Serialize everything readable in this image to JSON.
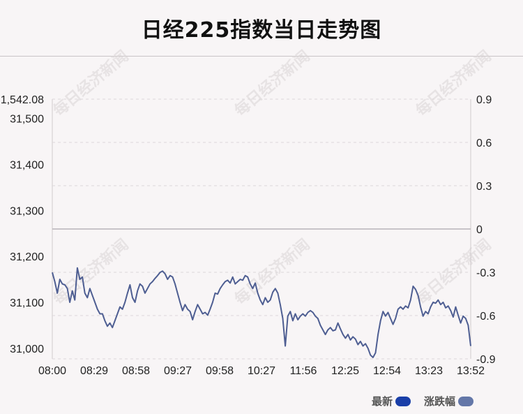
{
  "title": "日经225指数当日走势图",
  "watermark": "每日经济新闻",
  "legend": [
    {
      "label": "最新",
      "color": "#1a3fa8"
    },
    {
      "label": "涨跌幅",
      "color": "#6477a8"
    }
  ],
  "colors": {
    "line": "#4e5e92",
    "zero_line": "#b8b4b8",
    "grid": "#dcd8da"
  },
  "chart_data": {
    "type": "line",
    "title": "日经225指数当日走势图",
    "x_ticks": [
      "08:00",
      "08:29",
      "08:58",
      "09:27",
      "09:58",
      "10:27",
      "11:56",
      "12:25",
      "12:54",
      "13:23",
      "13:52"
    ],
    "y_left_ticks": [
      "31,542.08",
      "31,500",
      "31,400",
      "31,300",
      "31,200",
      "31,100",
      "31,000"
    ],
    "y_right_ticks": [
      "0.9",
      "0.6",
      "0.3",
      "0",
      "-0.3",
      "-0.6",
      "-0.9"
    ],
    "ylim_left": [
      30977,
      31542.08
    ],
    "ylim_right": [
      -0.9,
      0.9
    ],
    "series": [
      {
        "name": "最新",
        "points": [
          [
            0,
            31165
          ],
          [
            1,
            31145
          ],
          [
            2,
            31120
          ],
          [
            3,
            31150
          ],
          [
            4,
            31140
          ],
          [
            5,
            31138
          ],
          [
            6,
            31130
          ],
          [
            7,
            31100
          ],
          [
            8,
            31125
          ],
          [
            9,
            31105
          ],
          [
            10,
            31175
          ],
          [
            11,
            31150
          ],
          [
            12,
            31155
          ],
          [
            13,
            31120
          ],
          [
            14,
            31110
          ],
          [
            15,
            31130
          ],
          [
            16,
            31115
          ],
          [
            17,
            31100
          ],
          [
            18,
            31085
          ],
          [
            19,
            31075
          ],
          [
            20,
            31075
          ],
          [
            21,
            31060
          ],
          [
            22,
            31048
          ],
          [
            23,
            31055
          ],
          [
            24,
            31045
          ],
          [
            25,
            31060
          ],
          [
            26,
            31075
          ],
          [
            27,
            31090
          ],
          [
            28,
            31085
          ],
          [
            29,
            31100
          ],
          [
            30,
            31120
          ],
          [
            31,
            31138
          ],
          [
            32,
            31110
          ],
          [
            33,
            31100
          ],
          [
            34,
            31125
          ],
          [
            35,
            31140
          ],
          [
            36,
            31135
          ],
          [
            37,
            31120
          ],
          [
            38,
            31130
          ],
          [
            39,
            31140
          ],
          [
            40,
            31145
          ],
          [
            41,
            31152
          ],
          [
            42,
            31158
          ],
          [
            43,
            31165
          ],
          [
            44,
            31168
          ],
          [
            45,
            31162
          ],
          [
            46,
            31150
          ],
          [
            47,
            31158
          ],
          [
            48,
            31155
          ],
          [
            49,
            31140
          ],
          [
            50,
            31120
          ],
          [
            51,
            31100
          ],
          [
            52,
            31082
          ],
          [
            53,
            31095
          ],
          [
            54,
            31085
          ],
          [
            55,
            31080
          ],
          [
            56,
            31062
          ],
          [
            57,
            31080
          ],
          [
            58,
            31095
          ],
          [
            59,
            31085
          ],
          [
            60,
            31075
          ],
          [
            61,
            31078
          ],
          [
            62,
            31072
          ],
          [
            63,
            31085
          ],
          [
            64,
            31100
          ],
          [
            65,
            31120
          ],
          [
            66,
            31118
          ],
          [
            67,
            31130
          ],
          [
            68,
            31138
          ],
          [
            69,
            31145
          ],
          [
            70,
            31148
          ],
          [
            71,
            31142
          ],
          [
            72,
            31155
          ],
          [
            73,
            31140
          ],
          [
            74,
            31145
          ],
          [
            75,
            31150
          ],
          [
            76,
            31148
          ],
          [
            77,
            31158
          ],
          [
            78,
            31155
          ],
          [
            79,
            31140
          ],
          [
            80,
            31130
          ],
          [
            81,
            31142
          ],
          [
            82,
            31120
          ],
          [
            83,
            31105
          ],
          [
            84,
            31095
          ],
          [
            85,
            31110
          ],
          [
            86,
            31100
          ],
          [
            87,
            31105
          ],
          [
            88,
            31122
          ],
          [
            89,
            31130
          ],
          [
            90,
            31120
          ],
          [
            91,
            31095
          ],
          [
            92,
            31065
          ],
          [
            93,
            31005
          ],
          [
            94,
            31070
          ],
          [
            95,
            31080
          ],
          [
            96,
            31060
          ],
          [
            97,
            31075
          ],
          [
            98,
            31062
          ],
          [
            99,
            31070
          ],
          [
            100,
            31075
          ],
          [
            101,
            31070
          ],
          [
            102,
            31078
          ],
          [
            103,
            31082
          ],
          [
            104,
            31078
          ],
          [
            105,
            31070
          ],
          [
            106,
            31065
          ],
          [
            107,
            31050
          ],
          [
            108,
            31040
          ],
          [
            109,
            31030
          ],
          [
            110,
            31040
          ],
          [
            111,
            31045
          ],
          [
            112,
            31038
          ],
          [
            113,
            31040
          ],
          [
            114,
            31055
          ],
          [
            115,
            31042
          ],
          [
            116,
            31030
          ],
          [
            117,
            31022
          ],
          [
            118,
            31030
          ],
          [
            119,
            31018
          ],
          [
            120,
            31025
          ],
          [
            121,
            31020
          ],
          [
            122,
            31008
          ],
          [
            123,
            31015
          ],
          [
            124,
            31005
          ],
          [
            125,
            31010
          ],
          [
            126,
            31000
          ],
          [
            127,
            30985
          ],
          [
            128,
            30980
          ],
          [
            129,
            30990
          ],
          [
            130,
            31030
          ],
          [
            131,
            31060
          ],
          [
            132,
            31080
          ],
          [
            133,
            31070
          ],
          [
            134,
            31078
          ],
          [
            135,
            31065
          ],
          [
            136,
            31052
          ],
          [
            137,
            31065
          ],
          [
            138,
            31085
          ],
          [
            139,
            31090
          ],
          [
            140,
            31085
          ],
          [
            141,
            31092
          ],
          [
            142,
            31088
          ],
          [
            143,
            31105
          ],
          [
            144,
            31135
          ],
          [
            145,
            31128
          ],
          [
            146,
            31115
          ],
          [
            147,
            31090
          ],
          [
            148,
            31070
          ],
          [
            149,
            31080
          ],
          [
            150,
            31075
          ],
          [
            151,
            31090
          ],
          [
            152,
            31100
          ],
          [
            153,
            31098
          ],
          [
            154,
            31105
          ],
          [
            155,
            31095
          ],
          [
            156,
            31100
          ],
          [
            157,
            31088
          ],
          [
            158,
            31092
          ],
          [
            159,
            31082
          ],
          [
            160,
            31068
          ],
          [
            161,
            31090
          ],
          [
            162,
            31072
          ],
          [
            163,
            31055
          ],
          [
            164,
            31070
          ],
          [
            165,
            31065
          ],
          [
            166,
            31050
          ],
          [
            167,
            31005
          ]
        ]
      },
      {
        "name": "涨跌幅",
        "values": []
      }
    ],
    "grid": true,
    "legend_position": "bottom-right"
  }
}
